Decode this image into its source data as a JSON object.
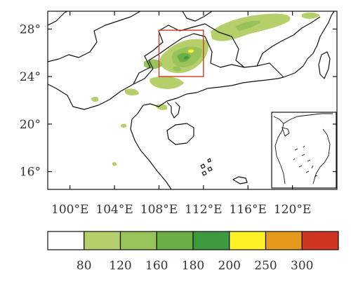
{
  "map": {
    "lon_range": [
      98,
      124
    ],
    "lat_range": [
      14.5,
      29.5
    ],
    "lon_ticks": [
      {
        "value": 100,
        "label": "100°E"
      },
      {
        "value": 104,
        "label": "104°E"
      },
      {
        "value": 108,
        "label": "108°E"
      },
      {
        "value": 112,
        "label": "112°E"
      },
      {
        "value": 116,
        "label": "116°E"
      },
      {
        "value": 120,
        "label": "120°E"
      }
    ],
    "lat_ticks": [
      {
        "value": 28,
        "label": "28°"
      },
      {
        "value": 24,
        "label": "24°"
      },
      {
        "value": 20,
        "label": "20°"
      },
      {
        "value": 16,
        "label": "16°"
      }
    ],
    "study_box": {
      "lon_min": 108,
      "lon_max": 112,
      "lat_min": 24,
      "lat_max": 27.9,
      "color": "#d23a1f"
    }
  },
  "colorbar": {
    "levels": [
      "80",
      "120",
      "160",
      "180",
      "200",
      "250",
      "300"
    ],
    "colors": [
      "#ffffff",
      "#b5cf6a",
      "#98c25a",
      "#6aae45",
      "#3e9a3e",
      "#fff124",
      "#e59a1e",
      "#cf3520"
    ]
  }
}
